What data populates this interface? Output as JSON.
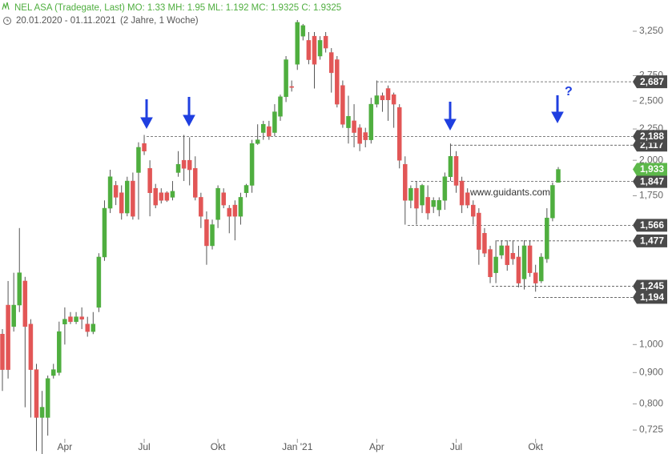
{
  "chart_data": {
    "type": "candlestick",
    "title": "NEL ASA (Tradegate, Last)",
    "stats": "MO: 1.33 MH: 1.95 ML: 1.192 MC: 1.9325 C: 1.9325",
    "period": "20.01.2020 - 01.11.2021",
    "period_note": "(2 Jahre, 1 Woche)",
    "watermark": "www.guidants.com",
    "annotation": "?",
    "log_scale": true,
    "grid": false,
    "up_color": "#4fae3f",
    "down_color": "#e25656",
    "categories": [
      null,
      null,
      null,
      null,
      null,
      null,
      null,
      null,
      null,
      null,
      null,
      "Apr",
      null,
      null,
      null,
      null,
      null,
      null,
      null,
      null,
      null,
      null,
      null,
      null,
      null,
      "Jul",
      null,
      null,
      null,
      null,
      null,
      null,
      null,
      null,
      null,
      null,
      null,
      null,
      "Okt",
      null,
      null,
      null,
      null,
      null,
      null,
      null,
      null,
      null,
      null,
      null,
      null,
      null,
      "Jan '21",
      null,
      null,
      null,
      null,
      null,
      null,
      null,
      null,
      null,
      null,
      null,
      null,
      null,
      "Apr",
      null,
      null,
      null,
      null,
      null,
      null,
      null,
      null,
      null,
      null,
      null,
      null,
      null,
      "Jul",
      null,
      null,
      null,
      null,
      null,
      null,
      null,
      null,
      null,
      null,
      null,
      null,
      null,
      "Okt",
      null,
      null,
      null,
      null
    ],
    "open": [
      1.04,
      1.16,
      1.07,
      1.16,
      1.27,
      1.08,
      0.91,
      0.76,
      0.76,
      0.89,
      0.9,
      1.08,
      1.11,
      1.09,
      1.11,
      1.08,
      1.05,
      1.15,
      1.39,
      1.67,
      1.82,
      1.77,
      1.64,
      1.85,
      1.91,
      2.13,
      1.94,
      1.8,
      1.77,
      1.77,
      1.74,
      1.91,
      2.0,
      2.0,
      1.94,
      1.74,
      1.6,
      1.45,
      1.6,
      1.77,
      1.67,
      1.69,
      1.62,
      1.77,
      1.82,
      2.13,
      2.22,
      2.27,
      2.22,
      2.36,
      2.54,
      2.64,
      2.87,
      3.19,
      3.14,
      3.19,
      2.96,
      3.19,
      3.0,
      2.92,
      2.65,
      2.26,
      2.32,
      2.26,
      2.22,
      2.16,
      2.47,
      2.55,
      2.62,
      2.56,
      2.44,
      1.97,
      1.72,
      1.8,
      1.69,
      1.74,
      1.68,
      1.66,
      1.72,
      1.88,
      2.03,
      1.85,
      1.77,
      1.69,
      1.64,
      1.52,
      1.43,
      1.31,
      1.4,
      1.45,
      1.41,
      1.39,
      1.28,
      1.45,
      1.31,
      1.27,
      1.38,
      1.61,
      1.84
    ],
    "high": [
      1.06,
      1.27,
      1.31,
      1.55,
      1.29,
      1.1,
      0.93,
      0.84,
      0.89,
      0.93,
      1.09,
      1.15,
      1.13,
      1.13,
      1.15,
      1.11,
      1.13,
      1.41,
      1.72,
      1.93,
      1.85,
      1.82,
      1.88,
      1.91,
      2.14,
      2.2,
      2.0,
      1.83,
      1.8,
      1.78,
      1.85,
      2.07,
      2.2,
      2.18,
      2.03,
      1.77,
      1.65,
      1.6,
      1.82,
      1.8,
      1.69,
      1.72,
      1.77,
      1.83,
      2.16,
      2.29,
      2.32,
      2.32,
      2.47,
      2.56,
      2.96,
      2.7,
      3.39,
      3.34,
      3.24,
      3.24,
      3.19,
      3.24,
      3.05,
      2.96,
      2.7,
      2.55,
      2.47,
      2.29,
      2.26,
      2.53,
      2.7,
      2.58,
      2.65,
      2.58,
      2.47,
      2.03,
      1.82,
      1.85,
      1.83,
      1.82,
      1.74,
      1.74,
      1.91,
      2.13,
      2.07,
      1.88,
      1.8,
      1.72,
      1.67,
      1.55,
      1.45,
      1.48,
      1.48,
      1.48,
      1.48,
      1.45,
      1.48,
      1.48,
      1.35,
      1.41,
      1.67,
      1.84,
      1.95
    ],
    "low": [
      0.84,
      0.88,
      1.05,
      1.13,
      0.79,
      0.76,
      0.67,
      0.66,
      0.71,
      0.88,
      0.89,
      1.0,
      1.08,
      1.08,
      1.06,
      1.03,
      1.04,
      1.13,
      1.37,
      1.64,
      1.69,
      1.6,
      1.62,
      1.6,
      1.6,
      2.04,
      1.62,
      1.67,
      1.7,
      1.71,
      1.72,
      1.88,
      1.85,
      1.82,
      1.72,
      1.55,
      1.35,
      1.43,
      1.55,
      1.67,
      1.52,
      1.48,
      1.57,
      1.74,
      1.77,
      2.12,
      2.16,
      2.16,
      2.19,
      2.32,
      2.49,
      2.59,
      2.81,
      3.14,
      2.87,
      2.62,
      2.92,
      3.0,
      2.58,
      2.44,
      2.26,
      2.13,
      2.1,
      2.07,
      2.1,
      2.13,
      2.44,
      2.4,
      2.32,
      2.26,
      1.94,
      1.57,
      1.67,
      1.57,
      1.64,
      1.6,
      1.64,
      1.62,
      1.66,
      1.85,
      1.77,
      1.64,
      1.67,
      1.57,
      1.35,
      1.39,
      1.26,
      1.26,
      1.38,
      1.32,
      1.35,
      1.24,
      1.23,
      1.29,
      1.22,
      1.26,
      1.36,
      1.59,
      1.84
    ],
    "close": [
      0.91,
      0.91,
      1.16,
      1.31,
      1.07,
      0.91,
      0.76,
      0.79,
      0.88,
      0.91,
      1.05,
      1.1,
      1.09,
      1.11,
      1.1,
      1.05,
      1.08,
      1.39,
      1.67,
      1.88,
      1.74,
      1.64,
      1.85,
      1.62,
      2.1,
      2.07,
      1.77,
      1.69,
      1.72,
      1.72,
      1.78,
      1.97,
      1.94,
      1.93,
      1.74,
      1.62,
      1.45,
      1.57,
      1.8,
      1.69,
      1.62,
      1.62,
      1.74,
      1.82,
      2.13,
      2.16,
      2.29,
      2.19,
      2.4,
      2.54,
      2.92,
      2.63,
      3.36,
      3.32,
      2.92,
      2.87,
      3.14,
      3.05,
      2.78,
      2.47,
      2.29,
      2.36,
      2.22,
      2.13,
      2.16,
      2.47,
      2.55,
      2.51,
      2.51,
      2.47,
      2.0,
      1.72,
      1.8,
      1.67,
      1.82,
      1.64,
      1.72,
      1.72,
      1.88,
      2.03,
      1.82,
      1.69,
      1.69,
      1.62,
      1.43,
      1.41,
      1.29,
      1.39,
      1.45,
      1.35,
      1.38,
      1.26,
      1.45,
      1.31,
      1.26,
      1.39,
      1.61,
      1.82,
      1.9325
    ],
    "ylim": [
      0.6625,
      3.655
    ],
    "yticks": [
      {
        "value": 3.25,
        "label": "3,250"
      },
      {
        "value": 2.75,
        "label": "2,750"
      },
      {
        "value": 2.5,
        "label": "2,500"
      },
      {
        "value": 2.25,
        "label": "2,250"
      },
      {
        "value": 2.0,
        "label": "2,000"
      },
      {
        "value": 1.75,
        "label": "1,750"
      },
      {
        "value": 1.0,
        "label": "1,000"
      },
      {
        "value": 0.9,
        "label": "0,900"
      },
      {
        "value": 0.8,
        "label": "0,800"
      },
      {
        "value": 0.725,
        "label": "0,725"
      }
    ],
    "levels": {
      "values": [
        2.687,
        2.117,
        2.188,
        1.847,
        1.566,
        1.477,
        1.245,
        1.194,
        1.933
      ],
      "value_labels": [
        "2,687",
        "2,117",
        "2,188",
        "1,847",
        "1,566",
        "1,477",
        "1,245",
        "1,194",
        "1,933"
      ]
    },
    "current_color": "#5cb84a",
    "level_color": "#4a4a4a"
  }
}
